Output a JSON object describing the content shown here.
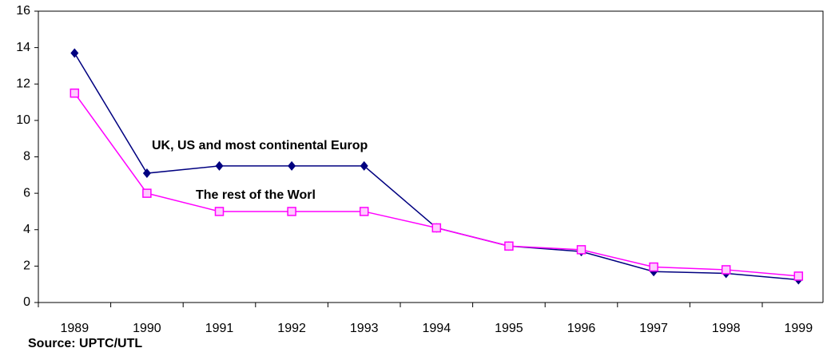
{
  "chart_data": {
    "type": "line",
    "categories": [
      "1989",
      "1990",
      "1991",
      "1992",
      "1993",
      "1994",
      "1995",
      "1996",
      "1997",
      "1998",
      "1999"
    ],
    "series": [
      {
        "name": "UK, US and most continental Europ",
        "color": "#000080",
        "marker": "diamond",
        "values": [
          13.7,
          7.1,
          7.5,
          7.5,
          7.5,
          4.1,
          3.1,
          2.8,
          1.7,
          1.6,
          1.25
        ]
      },
      {
        "name": "The rest of the Worl",
        "color": "#ff00ff",
        "marker": "square",
        "values": [
          11.5,
          6.0,
          5.0,
          5.0,
          5.0,
          4.1,
          3.1,
          2.9,
          1.95,
          1.8,
          1.45
        ]
      }
    ],
    "ylim": [
      0,
      16
    ],
    "yticks": [
      0,
      2,
      4,
      6,
      8,
      10,
      12,
      14,
      16
    ],
    "source": "Source: UPTC/UTL"
  }
}
